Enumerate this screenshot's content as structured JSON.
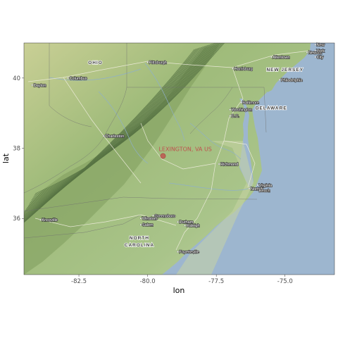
{
  "chart_data": {
    "type": "scatter",
    "xlabel": "lon",
    "ylabel": "lat",
    "xlim": [
      -84.5,
      -73.2
    ],
    "ylim": [
      34.4,
      41.0
    ],
    "x_ticks": [
      -82.5,
      -80.0,
      -77.5,
      -75.0
    ],
    "x_tick_labels": [
      "-82.5",
      "-80.0",
      "-77.5",
      "-75.0"
    ],
    "y_ticks": [
      36,
      38,
      40
    ],
    "y_tick_labels": [
      "36",
      "38",
      "40"
    ],
    "grid": false,
    "points": [
      {
        "x": -79.44,
        "y": 37.78,
        "label": "LEXINGTON, VA US",
        "color": "#c0504d"
      }
    ]
  },
  "map": {
    "land_color": "#a8c184",
    "water_color": "#9db6cf",
    "ridge_color": "#4f6b3e",
    "states": [
      {
        "name": "OHIO",
        "x": -81.9,
        "y": 40.4
      },
      {
        "name": "NEW JERSEY",
        "x": -75.0,
        "y": 40.2
      },
      {
        "name": "DELAWARE",
        "x": -75.5,
        "y": 39.1
      },
      {
        "name": "NORTH",
        "x": -80.3,
        "y": 35.4
      },
      {
        "name": "CAROLINA",
        "x": -80.3,
        "y": 35.2
      }
    ],
    "cities": [
      {
        "name": "Columbus",
        "x": -82.9,
        "y": 40.0
      },
      {
        "name": "Dayton",
        "x": -84.2,
        "y": 39.8
      },
      {
        "name": "Pittsburgh",
        "x": -80.0,
        "y": 40.45
      },
      {
        "name": "Harrisburg",
        "x": -76.9,
        "y": 40.27
      },
      {
        "name": "Allentown",
        "x": -75.5,
        "y": 40.6
      },
      {
        "name": "Newark",
        "x": -74.2,
        "y": 40.73
      },
      {
        "name": "New",
        "x": -73.9,
        "y": 40.95
      },
      {
        "name": "York",
        "x": -73.9,
        "y": 40.78
      },
      {
        "name": "City",
        "x": -73.9,
        "y": 40.6
      },
      {
        "name": "Philadelphia",
        "x": -75.2,
        "y": 39.95
      },
      {
        "name": "Baltimore",
        "x": -76.6,
        "y": 39.3
      },
      {
        "name": "Washington",
        "x": -77.0,
        "y": 39.1
      },
      {
        "name": "D.C.",
        "x": -77.0,
        "y": 38.92
      },
      {
        "name": "Charleston",
        "x": -81.6,
        "y": 38.35
      },
      {
        "name": "Richmond",
        "x": -77.4,
        "y": 37.55
      },
      {
        "name": "Norfolk",
        "x": -76.3,
        "y": 36.85
      },
      {
        "name": "Virginia",
        "x": -76.0,
        "y": 36.95
      },
      {
        "name": "Beach",
        "x": -76.0,
        "y": 36.8
      },
      {
        "name": "Knoxville",
        "x": -83.9,
        "y": 35.96
      },
      {
        "name": "Winston-",
        "x": -80.25,
        "y": 36.0
      },
      {
        "name": "Salem",
        "x": -80.25,
        "y": 35.82
      },
      {
        "name": "Greensboro",
        "x": -79.8,
        "y": 36.08
      },
      {
        "name": "Durham",
        "x": -78.9,
        "y": 35.9
      },
      {
        "name": "Raleigh",
        "x": -78.64,
        "y": 35.8
      },
      {
        "name": "Fayetteville",
        "x": -78.9,
        "y": 35.05
      }
    ]
  }
}
